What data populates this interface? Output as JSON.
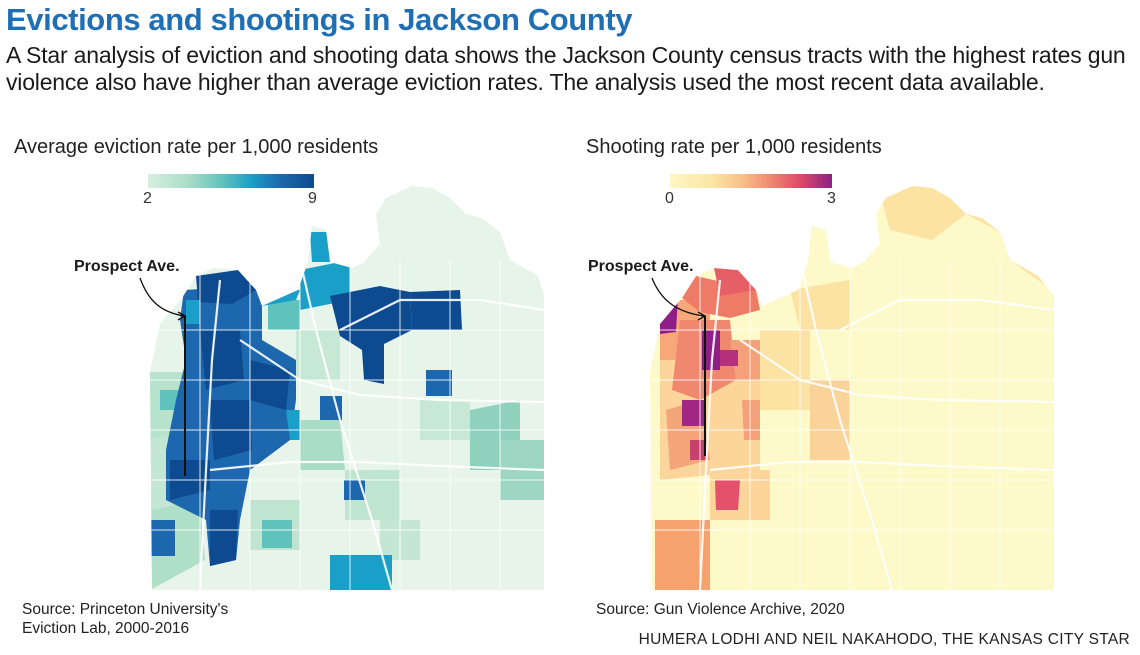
{
  "header": {
    "title": "Evictions and shootings in Jackson County",
    "subtitle": "A Star analysis of eviction and shooting data shows the Jackson County census tracts with the highest rates gun violence also have higher than average eviction rates. The analysis used the most recent data available."
  },
  "eviction_map": {
    "title": "Average eviction rate per 1,000 residents",
    "legend_min": "2",
    "legend_max": "9",
    "colors": [
      "#d8efe0",
      "#a8dcc7",
      "#5fc2bd",
      "#1aa0c8",
      "#1c67ae",
      "#0d4a8f"
    ],
    "annotation": "Prospect Ave.",
    "source_line1": "Source: Princeton University's",
    "source_line2": "Eviction Lab, 2000-2016"
  },
  "shooting_map": {
    "title": "Shooting rate per 1,000 residents",
    "legend_min": "0",
    "legend_max": "3",
    "colors": [
      "#fdf7c4",
      "#fce7a6",
      "#f9bf88",
      "#f0886f",
      "#dd4b6a",
      "#8f1f86"
    ],
    "annotation": "Prospect Ave.",
    "source": "Source: Gun Violence Archive, 2020"
  },
  "credit": "HUMERA LODHI AND NEIL NAKAHODO, THE KANSAS CITY STAR"
}
